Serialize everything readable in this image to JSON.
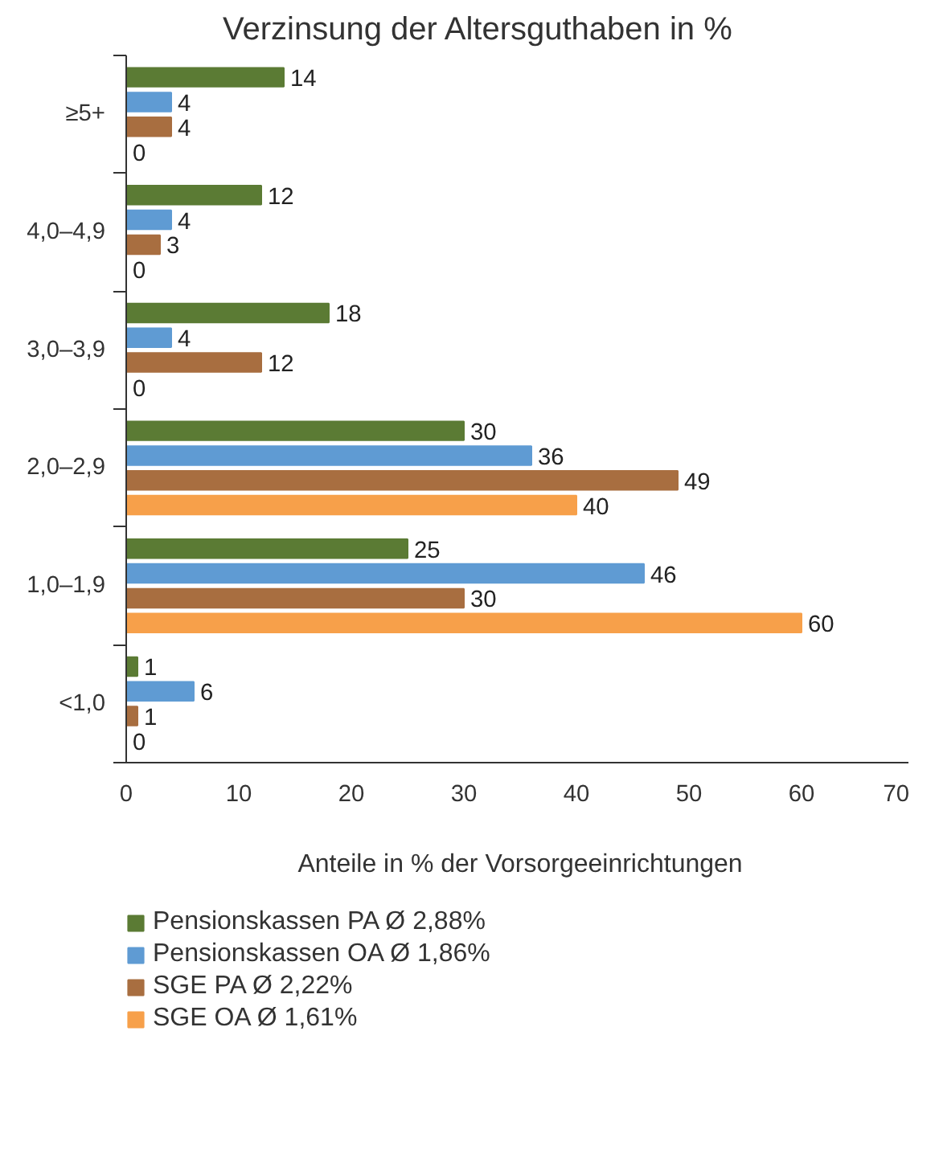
{
  "chart_data": {
    "type": "bar",
    "orientation": "horizontal",
    "title": "Verzinsung der Altersguthaben in %",
    "xlabel": "Anteile in % der Vorsorgeeinrichtungen",
    "categories": [
      "≥5+",
      "4,0–4,9",
      "3,0–3,9",
      "2,0–2,9",
      "1,0–1,9",
      "<1,0"
    ],
    "series": [
      {
        "name": "Pensionskassen PA Ø 2,88%",
        "color": "#5b7b34",
        "values": [
          14,
          12,
          18,
          30,
          25,
          1
        ]
      },
      {
        "name": "Pensionskassen OA Ø 1,86%",
        "color": "#5f9bd3",
        "values": [
          4,
          4,
          4,
          36,
          46,
          6
        ]
      },
      {
        "name": "SGE PA Ø 2,22%",
        "color": "#a86e40",
        "values": [
          4,
          3,
          12,
          49,
          30,
          1
        ]
      },
      {
        "name": "SGE OA Ø 1,61%",
        "color": "#f7a04a",
        "values": [
          0,
          0,
          0,
          40,
          60,
          0
        ]
      }
    ],
    "xlim": [
      0,
      70
    ],
    "xticks": [
      0,
      10,
      20,
      30,
      40,
      50,
      60,
      70
    ],
    "grid": false,
    "legend": "bottom",
    "data_labels": true
  }
}
